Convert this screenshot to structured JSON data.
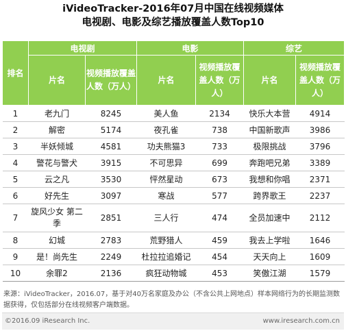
{
  "title_line1": "iVideoTracker-2016年07月中国在线视频媒体",
  "title_line2": "电视剧、电影及综艺播放覆盖人数Top10",
  "header": {
    "rank": "排名",
    "groups": [
      "电视剧",
      "电影",
      "综艺"
    ],
    "name_col": "片名",
    "value_col": "视频播放覆盖人数（万人）"
  },
  "chart_data": {
    "type": "table",
    "title": "iVideoTracker-2016年07月中国在线视频媒体电视剧、电影及综艺播放覆盖人数Top10",
    "columns": [
      "排名",
      "电视剧 片名",
      "电视剧 视频播放覆盖人数（万人）",
      "电影 片名",
      "电影 视频播放覆盖人数（万人）",
      "综艺 片名",
      "综艺 视频播放覆盖人数（万人）"
    ],
    "rows": [
      {
        "rank": "1",
        "tv": "老九门",
        "tv_value": "8245",
        "movie": "美人鱼",
        "movie_value": "2134",
        "variety": "快乐大本营",
        "variety_value": "4914"
      },
      {
        "rank": "2",
        "tv": "解密",
        "tv_value": "5174",
        "movie": "夜孔雀",
        "movie_value": "738",
        "variety": "中国新歌声",
        "variety_value": "3986"
      },
      {
        "rank": "3",
        "tv": "半妖倾城",
        "tv_value": "4581",
        "movie": "功夫熊猫3",
        "movie_value": "733",
        "variety": "极限挑战",
        "variety_value": "3796"
      },
      {
        "rank": "4",
        "tv": "警花与警犬",
        "tv_value": "3915",
        "movie": "不可思异",
        "movie_value": "699",
        "variety": "奔跑吧兄弟",
        "variety_value": "3389"
      },
      {
        "rank": "5",
        "tv": "云之凡",
        "tv_value": "3530",
        "movie": "怦然星动",
        "movie_value": "673",
        "variety": "我想和你唱",
        "variety_value": "2371"
      },
      {
        "rank": "6",
        "tv": "好先生",
        "tv_value": "3097",
        "movie": "寒战",
        "movie_value": "577",
        "variety": "跨界歌王",
        "variety_value": "2237"
      },
      {
        "rank": "7",
        "tv": "旋风少女 第二季",
        "tv_value": "2851",
        "movie": "三人行",
        "movie_value": "474",
        "variety": "全员加速中",
        "variety_value": "2112"
      },
      {
        "rank": "8",
        "tv": "幻城",
        "tv_value": "2783",
        "movie": "荒野猎人",
        "movie_value": "459",
        "variety": "我去上学啦",
        "variety_value": "1646"
      },
      {
        "rank": "9",
        "tv": "是！尚先生",
        "tv_value": "2249",
        "movie": "杜拉拉追婚记",
        "movie_value": "454",
        "variety": "天天向上",
        "variety_value": "1609"
      },
      {
        "rank": "10",
        "tv": "余罪2",
        "tv_value": "2136",
        "movie": "疯狂动物城",
        "movie_value": "453",
        "variety": "笑傲江湖",
        "variety_value": "1579"
      }
    ],
    "colors": {
      "header": "#91cf50",
      "header_text": "#ffffff",
      "row_divider": "#c7c7c7"
    }
  },
  "footnote": "来源：iVideoTracker，2016.07，基于对40万名家庭及办公（不含公共上网地点）样本网络行为的长期监测数据获得，仅包括部分在线视频客户端数据。",
  "footer": {
    "copyright": "©2016.09 iResearch Inc.",
    "site": "www.iresearch.com.cn"
  }
}
